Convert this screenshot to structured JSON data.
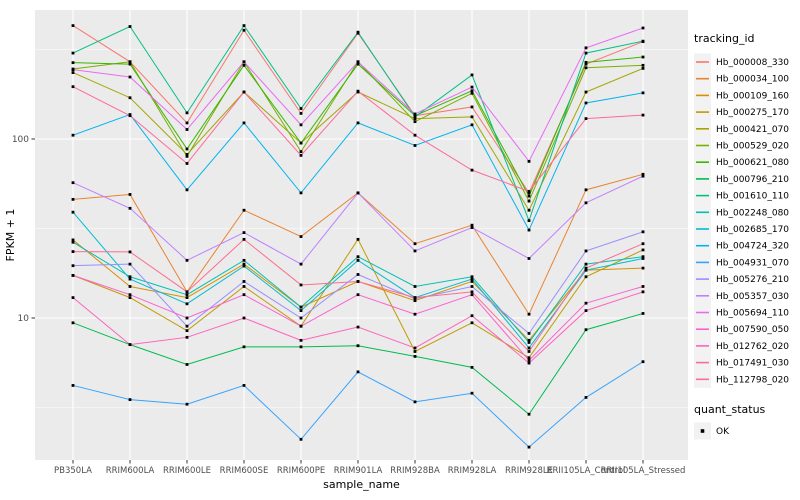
{
  "chart_data": {
    "type": "line",
    "title": "",
    "xlabel": "sample_name",
    "ylabel": "FPKM + 1",
    "y_scale": "log10",
    "y_major_ticks": [
      10,
      100
    ],
    "y_minor_ticks": [
      3.1623,
      31.623,
      316.23
    ],
    "ylim": [
      1.55,
      530
    ],
    "legend_title": "tracking_id",
    "legend2_title": "quant_status",
    "legend2_items": [
      {
        "label": "OK",
        "marker": "black-square"
      }
    ],
    "panel_bg": "#EBEBEB",
    "grid_color": "#FFFFFF",
    "tick_color": "#333333",
    "tick_label_color": "#4D4D4D",
    "axis_title_color": "#000000",
    "point_color": "#000000",
    "legend_key_bg": "#F2F2F2",
    "categories": [
      "PB350LA",
      "RRIM600LA",
      "RRIM600LE",
      "RRIM600SE",
      "RRIM600PE",
      "RRIM901LA",
      "RRIM928BA",
      "RRIM928LA",
      "RRIM928LE",
      "RRII105LA_Control",
      "RRII105LA_Stressed"
    ],
    "series": [
      {
        "name": "Hb_000008_330",
        "color": "#F8766D",
        "values": [
          430,
          270,
          123,
          405,
          139,
          390,
          135,
          151,
          50,
          262,
          350
        ]
      },
      {
        "name": "Hb_000034_100",
        "color": "#EA8331",
        "values": [
          46,
          49,
          14,
          40,
          28.5,
          50,
          26,
          33,
          10.5,
          52,
          63.5
        ]
      },
      {
        "name": "Hb_000109_160",
        "color": "#D89000",
        "values": [
          27.3,
          15,
          13,
          20,
          11.5,
          16,
          12.5,
          16,
          7.5,
          18.5,
          19
        ]
      },
      {
        "name": "Hb_000275_170",
        "color": "#C09B00",
        "values": [
          17.3,
          13,
          8.5,
          15,
          9,
          27.5,
          6.5,
          9.4,
          6,
          17,
          24
        ]
      },
      {
        "name": "Hb_000421_070",
        "color": "#A3A500",
        "values": [
          235,
          170,
          82,
          183,
          95,
          183,
          130,
          133,
          40,
          183,
          248
        ]
      },
      {
        "name": "Hb_000529_020",
        "color": "#7CAE00",
        "values": [
          246,
          270,
          80,
          270,
          85,
          270,
          125,
          180,
          45,
          250,
          258
        ]
      },
      {
        "name": "Hb_000621_080",
        "color": "#39B600",
        "values": [
          267,
          262,
          88,
          258,
          95,
          262,
          135,
          186,
          48,
          268,
          287
        ]
      },
      {
        "name": "Hb_000796_210",
        "color": "#00BB4E",
        "values": [
          9.4,
          7.1,
          5.5,
          6.9,
          6.9,
          7,
          6.1,
          5.3,
          2.9,
          8.6,
          10.6
        ]
      },
      {
        "name": "Hb_001610_110",
        "color": "#00C087",
        "values": [
          302,
          425,
          140,
          430,
          148,
          395,
          133,
          228,
          35,
          302,
          352
        ]
      },
      {
        "name": "Hb_002248_080",
        "color": "#00C0B2",
        "values": [
          26.5,
          17,
          13.5,
          21,
          11.5,
          22,
          15,
          17,
          7.3,
          20,
          22
        ]
      },
      {
        "name": "Hb_002685_170",
        "color": "#00BDD0",
        "values": [
          39,
          16.5,
          12,
          19.5,
          11,
          21,
          13,
          16.5,
          6.8,
          18.5,
          21.5
        ]
      },
      {
        "name": "Hb_004724_320",
        "color": "#00B4EF",
        "values": [
          105,
          137,
          52,
          123,
          50,
          123,
          92,
          120,
          31,
          159,
          181
        ]
      },
      {
        "name": "Hb_004931_070",
        "color": "#35A2FF",
        "values": [
          4.2,
          3.5,
          3.3,
          4.2,
          2.1,
          5,
          3.4,
          3.8,
          1.9,
          3.6,
          5.7
        ]
      },
      {
        "name": "Hb_005276_210",
        "color": "#9590FF",
        "values": [
          19.6,
          20,
          9,
          16,
          10,
          17.5,
          12.8,
          15,
          8.2,
          23.7,
          30.3
        ]
      },
      {
        "name": "Hb_005357_030",
        "color": "#BF80FF",
        "values": [
          57,
          41,
          21,
          30,
          20,
          50,
          23.7,
          32,
          21.5,
          44,
          62
        ]
      },
      {
        "name": "Hb_005694_110",
        "color": "#E76BF3",
        "values": [
          244,
          222,
          113,
          270,
          120,
          270,
          138,
          195,
          75,
          323,
          417
        ]
      },
      {
        "name": "Hb_007590_050",
        "color": "#FD61D1",
        "values": [
          17.3,
          13.5,
          10,
          13.5,
          9,
          13.5,
          10.5,
          13.5,
          5.8,
          12.1,
          15
        ]
      },
      {
        "name": "Hb_012762_020",
        "color": "#FF62BC",
        "values": [
          13,
          7.1,
          7.8,
          10,
          7.5,
          8.9,
          6.8,
          10.3,
          5.6,
          11,
          14
        ]
      },
      {
        "name": "Hb_017491_030",
        "color": "#FF6A98",
        "values": [
          196,
          135,
          73,
          183,
          81,
          185,
          105,
          67,
          51,
          130,
          136
        ]
      },
      {
        "name": "Hb_112798_020",
        "color": "#FF6C91",
        "values": [
          23.5,
          23.4,
          14,
          27.5,
          15.3,
          16,
          13,
          14,
          6.5,
          19,
          26
        ]
      }
    ]
  }
}
